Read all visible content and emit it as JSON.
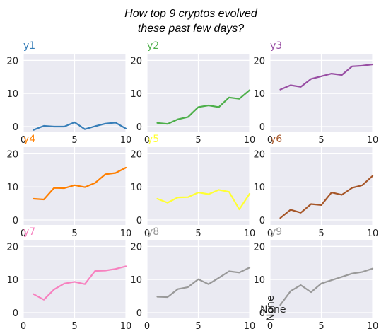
{
  "chart_data": {
    "type": "line",
    "title_lines": [
      "How top 9 cryptos evolved",
      "these past few days?"
    ],
    "xlim": [
      0,
      10
    ],
    "ylim": [
      -1.5,
      22
    ],
    "xticks": [
      0,
      5,
      10
    ],
    "yticks": [
      0,
      10,
      20
    ],
    "grid": true,
    "x": [
      1,
      2,
      3,
      4,
      5,
      6,
      7,
      8,
      9,
      10
    ],
    "series": [
      {
        "name": "y1",
        "color": "#377eb8",
        "values": [
          -1.0,
          0.2,
          0.0,
          0.0,
          1.3,
          -0.8,
          0.1,
          0.9,
          1.2,
          -0.6
        ]
      },
      {
        "name": "y2",
        "color": "#4daf4a",
        "values": [
          1.1,
          0.8,
          2.2,
          2.9,
          5.9,
          6.4,
          5.9,
          8.8,
          8.4,
          11.0
        ]
      },
      {
        "name": "y3",
        "color": "#984ea3",
        "values": [
          11.2,
          12.5,
          12.0,
          14.4,
          15.2,
          16.0,
          15.6,
          18.2,
          18.4,
          18.8
        ]
      },
      {
        "name": "y4",
        "color": "#ff7f00",
        "values": [
          6.4,
          6.2,
          9.7,
          9.6,
          10.5,
          9.9,
          11.2,
          13.8,
          14.2,
          15.8
        ]
      },
      {
        "name": "y5",
        "color": "#ffff33",
        "values": [
          6.4,
          5.2,
          6.8,
          6.9,
          8.3,
          7.8,
          9.1,
          8.5,
          3.2,
          7.9
        ]
      },
      {
        "name": "y6",
        "color": "#a65628",
        "values": [
          0.6,
          3.1,
          2.2,
          4.8,
          4.5,
          8.3,
          7.6,
          9.7,
          10.5,
          13.3
        ]
      },
      {
        "name": "y7",
        "color": "#f781bf",
        "values": [
          5.6,
          3.9,
          7.0,
          8.8,
          9.3,
          8.6,
          12.6,
          12.7,
          13.2,
          14.0
        ]
      },
      {
        "name": "y8",
        "color": "#999999",
        "values": [
          4.8,
          4.7,
          7.1,
          7.7,
          10.1,
          8.6,
          10.5,
          12.5,
          12.1,
          13.6
        ]
      },
      {
        "name": "y9",
        "color": "#999999",
        "values": [
          2.3,
          6.5,
          8.3,
          6.2,
          8.8,
          9.8,
          10.8,
          11.8,
          12.3,
          13.3
        ]
      }
    ],
    "annotation": "None"
  }
}
